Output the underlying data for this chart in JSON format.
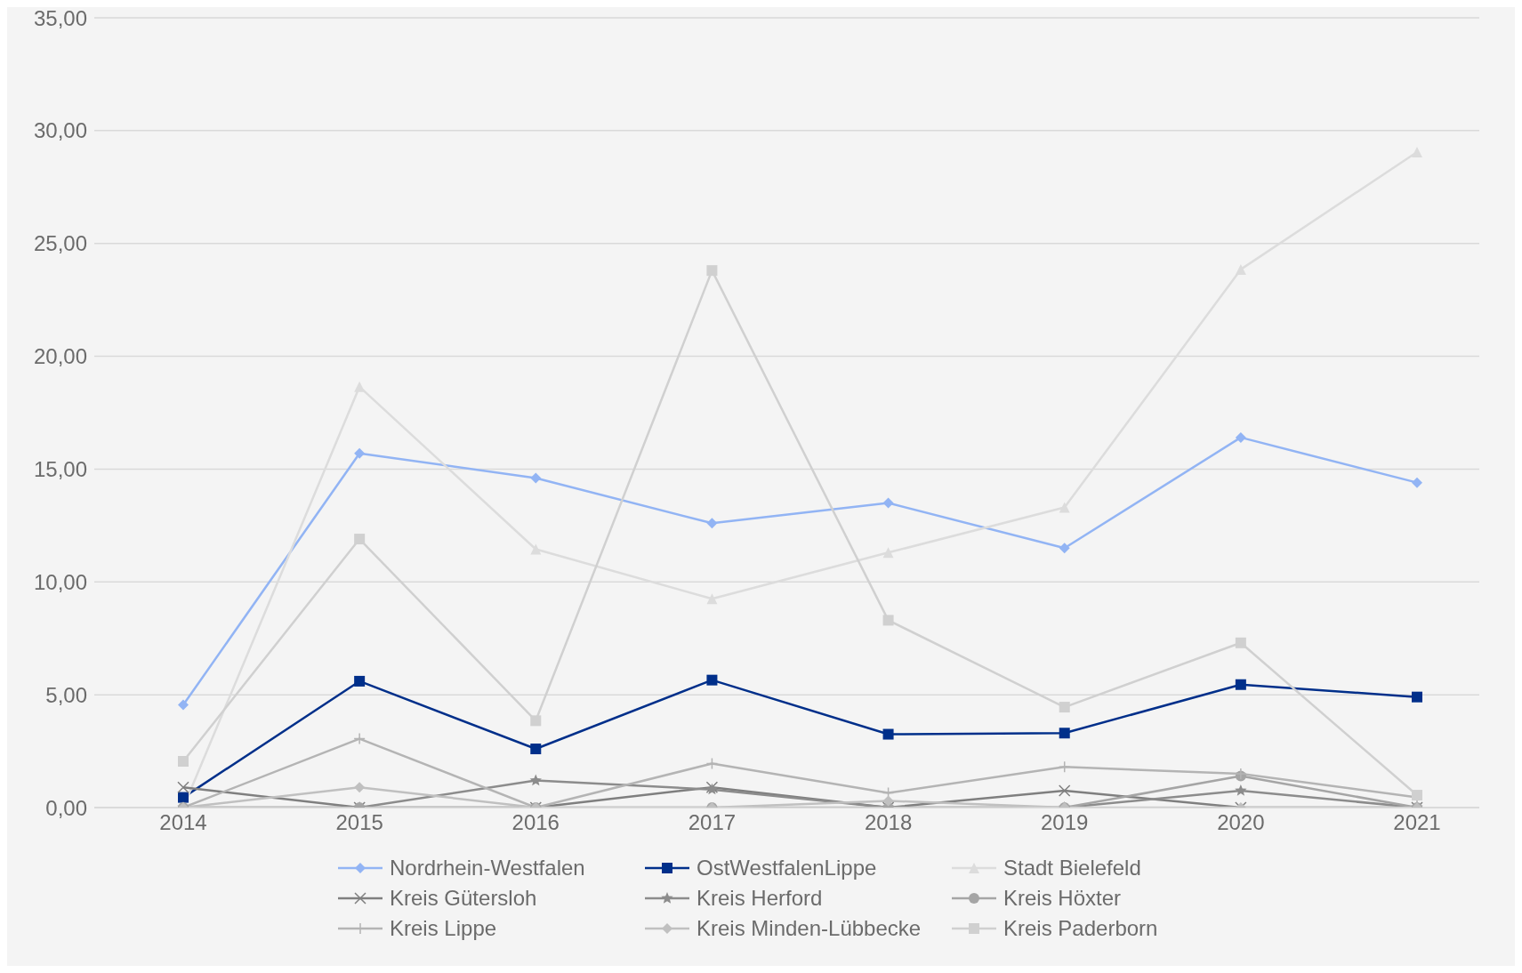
{
  "chart_data": {
    "type": "line",
    "categories": [
      "2014",
      "2015",
      "2016",
      "2017",
      "2018",
      "2019",
      "2020",
      "2021"
    ],
    "ylim": [
      0,
      35
    ],
    "yticks": [
      {
        "value": 0,
        "label": "0,00"
      },
      {
        "value": 5,
        "label": "5,00"
      },
      {
        "value": 10,
        "label": "10,00"
      },
      {
        "value": 15,
        "label": "15,00"
      },
      {
        "value": 20,
        "label": "20,00"
      },
      {
        "value": 25,
        "label": "25,00"
      },
      {
        "value": 30,
        "label": "30,00"
      },
      {
        "value": 35,
        "label": "35,00"
      }
    ],
    "grid": "y",
    "legend": "bottom",
    "line_style": "solid",
    "series": [
      {
        "name": "Nordrhein-Westfalen",
        "color": "#92b4f4",
        "marker": "diamond",
        "values": [
          4.55,
          15.7,
          14.6,
          12.6,
          13.5,
          11.5,
          16.4,
          14.4
        ]
      },
      {
        "name": "OstWestfalenLippe",
        "color": "#002f8a",
        "marker": "square",
        "values": [
          0.45,
          5.6,
          2.6,
          5.65,
          3.25,
          3.3,
          5.45,
          4.9
        ]
      },
      {
        "name": "Stadt Bielefeld",
        "color": "#dcdcdc",
        "marker": "triangle",
        "values": [
          0,
          18.65,
          11.45,
          9.25,
          11.3,
          13.3,
          23.85,
          29.05
        ]
      },
      {
        "name": "Kreis Gütersloh",
        "color": "#7f7f7f",
        "marker": "x",
        "values": [
          0.9,
          0,
          0,
          0.9,
          0,
          0.75,
          0,
          0
        ]
      },
      {
        "name": "Kreis Herford",
        "color": "#8c8c8c",
        "marker": "star",
        "values": [
          0,
          0,
          1.2,
          0.8,
          0,
          0,
          0.75,
          0
        ]
      },
      {
        "name": "Kreis Höxter",
        "color": "#a5a5a5",
        "marker": "circle",
        "values": [
          0,
          0,
          0,
          0,
          0,
          0,
          1.4,
          0
        ]
      },
      {
        "name": "Kreis Lippe",
        "color": "#b4b4b4",
        "marker": "cross",
        "values": [
          0,
          3.05,
          0,
          1.95,
          0.65,
          1.8,
          1.5,
          0.45
        ]
      },
      {
        "name": "Kreis Minden-Lübbecke",
        "color": "#c0c0c0",
        "marker": "diamond",
        "values": [
          0,
          0.9,
          0,
          0,
          0.3,
          0,
          0,
          0
        ]
      },
      {
        "name": "Kreis Paderborn",
        "color": "#d0d0d0",
        "marker": "square",
        "values": [
          2.05,
          11.9,
          3.85,
          23.8,
          8.3,
          4.45,
          7.3,
          0.55
        ]
      }
    ]
  }
}
